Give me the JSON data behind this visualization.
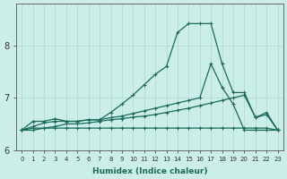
{
  "xlabel": "Humidex (Indice chaleur)",
  "bg_color": "#cceee8",
  "grid_color": "#b8ddd8",
  "line_color": "#1a6b5a",
  "xlim": [
    -0.5,
    23.5
  ],
  "ylim": [
    6.0,
    8.8
  ],
  "yticks": [
    6,
    7,
    8
  ],
  "xticks": [
    0,
    1,
    2,
    3,
    4,
    5,
    6,
    7,
    8,
    9,
    10,
    11,
    12,
    13,
    14,
    15,
    16,
    17,
    18,
    19,
    20,
    21,
    22,
    23
  ],
  "series": [
    {
      "x": [
        0,
        1,
        2,
        3,
        4,
        5,
        6,
        7,
        8,
        9,
        10,
        11,
        12,
        13,
        14,
        15,
        16,
        17,
        18,
        19,
        20,
        21,
        22,
        23
      ],
      "y": [
        6.38,
        6.55,
        6.55,
        6.6,
        6.55,
        6.55,
        6.58,
        6.58,
        6.72,
        6.88,
        7.05,
        7.25,
        7.45,
        7.6,
        8.25,
        8.42,
        8.42,
        8.42,
        7.65,
        7.1,
        7.1,
        6.62,
        6.72,
        6.38
      ]
    },
    {
      "x": [
        0,
        1,
        2,
        3,
        4,
        5,
        6,
        7,
        8,
        9,
        10,
        11,
        12,
        13,
        14,
        15,
        16,
        17,
        18,
        19,
        20,
        21,
        22,
        23
      ],
      "y": [
        6.38,
        6.45,
        6.52,
        6.55,
        6.55,
        6.55,
        6.58,
        6.58,
        6.62,
        6.65,
        6.7,
        6.75,
        6.8,
        6.85,
        6.9,
        6.95,
        7.0,
        7.65,
        7.2,
        6.88,
        6.38,
        6.38,
        6.38,
        6.38
      ]
    },
    {
      "x": [
        0,
        1,
        2,
        3,
        4,
        5,
        6,
        7,
        8,
        9,
        10,
        11,
        12,
        13,
        14,
        15,
        16,
        17,
        18,
        19,
        20,
        21,
        22,
        23
      ],
      "y": [
        6.38,
        6.38,
        6.42,
        6.45,
        6.5,
        6.5,
        6.52,
        6.55,
        6.58,
        6.6,
        6.63,
        6.65,
        6.68,
        6.72,
        6.76,
        6.8,
        6.85,
        6.9,
        6.95,
        7.0,
        7.05,
        6.62,
        6.68,
        6.38
      ]
    },
    {
      "x": [
        0,
        1,
        2,
        3,
        4,
        5,
        6,
        7,
        8,
        9,
        10,
        11,
        12,
        13,
        14,
        15,
        16,
        17,
        18,
        19,
        20,
        21,
        22,
        23
      ],
      "y": [
        6.38,
        6.42,
        6.42,
        6.42,
        6.42,
        6.42,
        6.42,
        6.42,
        6.42,
        6.42,
        6.42,
        6.42,
        6.42,
        6.42,
        6.42,
        6.42,
        6.42,
        6.42,
        6.42,
        6.42,
        6.42,
        6.42,
        6.42,
        6.38
      ]
    }
  ]
}
